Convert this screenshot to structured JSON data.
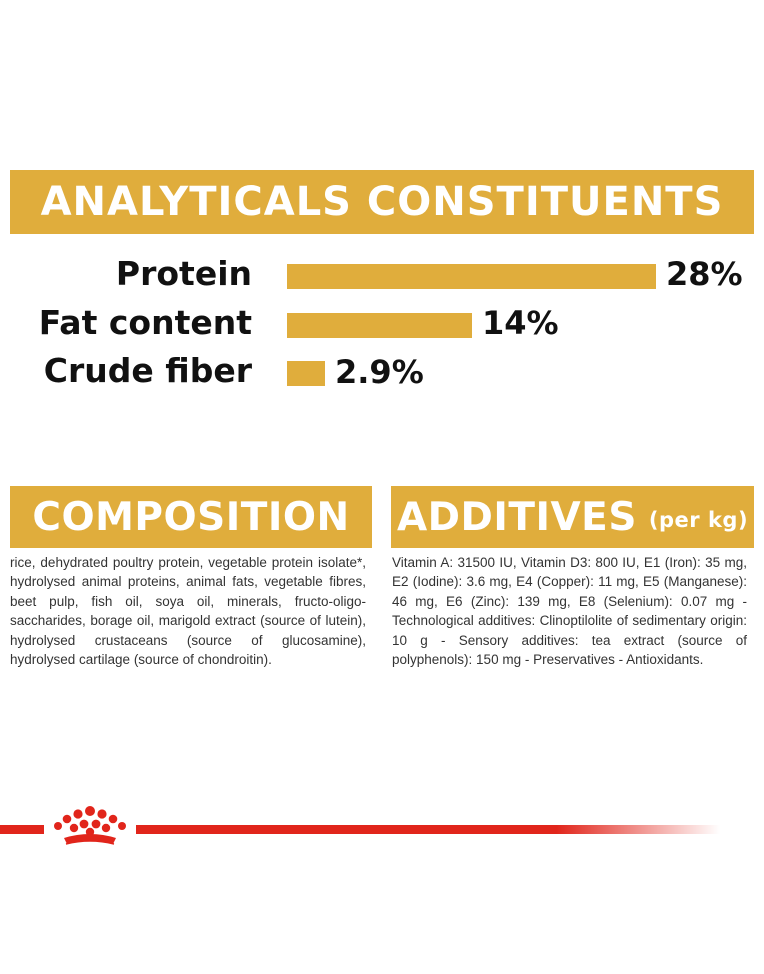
{
  "analytics": {
    "title": "ANALYTICALS CONSTITUENTS",
    "rows": [
      {
        "label": "Protein",
        "value_text": "28%",
        "value": 28
      },
      {
        "label": "Fat content",
        "value_text": "14%",
        "value": 14
      },
      {
        "label": "Crude fiber",
        "value_text": "2.9%",
        "value": 2.9
      }
    ]
  },
  "composition": {
    "title": "COMPOSITION",
    "text": "rice, dehydrated poultry protein, vegetable protein isolate*, hydrolysed animal proteins, animal fats, vegetable fibres, beet pulp, fish oil, soya oil, minerals, fructo-oligo-saccharides, borage oil, marigold extract (source of lutein), hydrolysed crustaceans (source of glucosamine), hydrolysed cartilage (source of chondroitin)."
  },
  "additives": {
    "title": "ADDITIVES",
    "unit": "(per kg)",
    "text": "Vitamin A: 31500 IU, Vitamin D3: 800 IU, E1 (Iron): 35 mg, E2 (Iodine): 3.6 mg, E4 (Copper): 11 mg, E5 (Manganese): 46 mg, E6 (Zinc): 139 mg, E8 (Selenium): 0.07 mg - Technological additives: Clinoptilolite of sedimentary origin: 10 g - Sensory additives: tea extract (source of polyphenols): 150 mg - Preservatives - Antioxidants."
  },
  "colors": {
    "accent": "#e0ad3c",
    "brand_red": "#e1251b"
  },
  "icons": {
    "logo": "royal-canin-crown-icon"
  }
}
